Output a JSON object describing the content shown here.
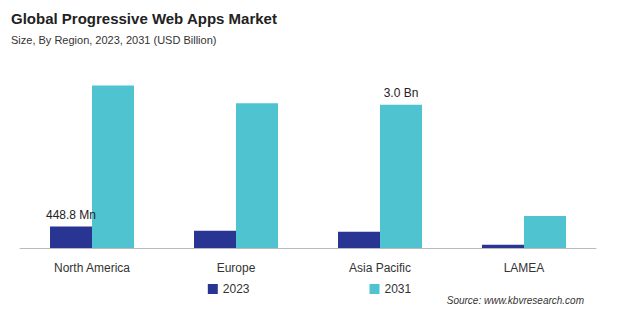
{
  "chart_data": {
    "type": "bar",
    "title": "Global Progressive Web Apps Market",
    "subtitle": "Size, By Region, 2023, 2031 (USD Billion)",
    "annotations": [
      "Source: www.kbvresearch.com"
    ],
    "categories": [
      "North America",
      "Europe",
      "Asia Pacific",
      "LAMEA"
    ],
    "series": [
      {
        "name": "2023",
        "color": "#283593",
        "values": [
          0.4488,
          0.36,
          0.34,
          0.07
        ],
        "value_labels": [
          "448.8 Mn",
          null,
          null,
          null
        ]
      },
      {
        "name": "2031",
        "color": "#4fc3cf",
        "values": [
          3.4,
          3.03,
          3.0,
          0.67
        ],
        "value_labels": [
          null,
          null,
          "3.0 Bn",
          null
        ]
      }
    ],
    "ylim": [
      0,
      3.6
    ],
    "data_labels": true,
    "tick_labels": "x",
    "grid": false,
    "legend": "bottom"
  }
}
